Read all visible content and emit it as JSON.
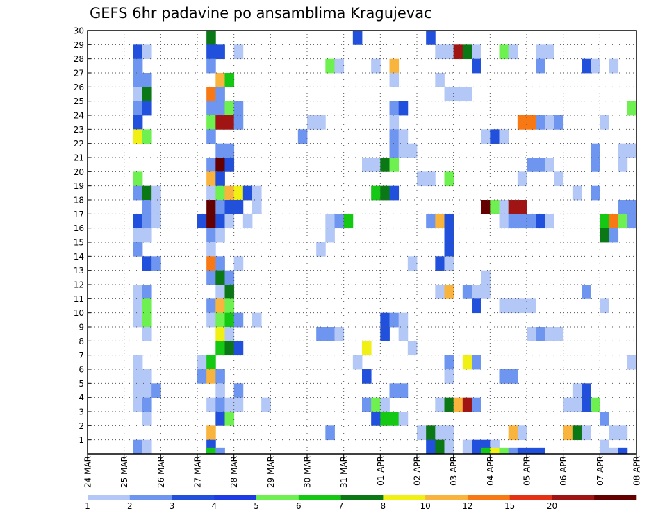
{
  "chart_data": {
    "type": "heatmap",
    "title": "GEFS 6hr padavine po ansamblima Kragujevac",
    "x_tick_labels": [
      "24 MAR",
      "25 MAR",
      "26 MAR",
      "27 MAR",
      "28 MAR",
      "29 MAR",
      "30 MAR",
      "31 MAR",
      "01 APR",
      "02 APR",
      "03 APR",
      "04 APR",
      "05 APR",
      "06 APR",
      "07 APR",
      "08 APR"
    ],
    "y_tick_labels": [
      "1",
      "2",
      "3",
      "4",
      "5",
      "6",
      "7",
      "8",
      "9",
      "10",
      "11",
      "12",
      "13",
      "14",
      "15",
      "16",
      "17",
      "18",
      "19",
      "20",
      "21",
      "22",
      "23",
      "24",
      "25",
      "26",
      "27",
      "28",
      "29",
      "30"
    ],
    "time_steps": 60,
    "members": 30,
    "grid": true,
    "colorbar": {
      "tick_labels": [
        "1",
        "2",
        "3",
        "4",
        "5",
        "6",
        "7",
        "8",
        "10",
        "12",
        "15",
        "20"
      ],
      "colors": [
        "#b4c8f8",
        "#6e96f0",
        "#2050dc",
        "#1e3ce6",
        "#6ef050",
        "#14c814",
        "#0a7814",
        "#f0f014",
        "#f8b43c",
        "#f87814",
        "#e63214",
        "#a01414",
        "#640000"
      ]
    },
    "cells": [
      [
        30,
        14,
        6
      ],
      [
        30,
        30,
        2
      ],
      [
        30,
        38,
        2
      ],
      [
        29,
        6,
        2
      ],
      [
        29,
        7,
        0
      ],
      [
        29,
        14,
        2
      ],
      [
        29,
        15,
        2
      ],
      [
        29,
        17,
        0
      ],
      [
        29,
        39,
        0
      ],
      [
        29,
        40,
        0
      ],
      [
        29,
        41,
        11
      ],
      [
        29,
        42,
        6
      ],
      [
        29,
        43,
        0
      ],
      [
        29,
        46,
        4
      ],
      [
        29,
        47,
        0
      ],
      [
        29,
        50,
        0
      ],
      [
        29,
        51,
        0
      ],
      [
        28,
        6,
        1
      ],
      [
        28,
        14,
        1
      ],
      [
        28,
        27,
        4
      ],
      [
        28,
        28,
        0
      ],
      [
        28,
        32,
        0
      ],
      [
        28,
        34,
        8
      ],
      [
        28,
        43,
        2
      ],
      [
        28,
        50,
        1
      ],
      [
        28,
        55,
        2
      ],
      [
        28,
        56,
        0
      ],
      [
        28,
        58,
        0
      ],
      [
        27,
        6,
        1
      ],
      [
        27,
        7,
        1
      ],
      [
        27,
        15,
        8
      ],
      [
        27,
        16,
        5
      ],
      [
        27,
        34,
        0
      ],
      [
        27,
        39,
        0
      ],
      [
        26,
        6,
        0
      ],
      [
        26,
        7,
        6
      ],
      [
        26,
        14,
        9
      ],
      [
        26,
        15,
        1
      ],
      [
        26,
        40,
        0
      ],
      [
        26,
        41,
        0
      ],
      [
        26,
        42,
        0
      ],
      [
        25,
        6,
        1
      ],
      [
        25,
        7,
        2
      ],
      [
        25,
        14,
        1
      ],
      [
        25,
        15,
        1
      ],
      [
        25,
        16,
        4
      ],
      [
        25,
        17,
        1
      ],
      [
        25,
        34,
        1
      ],
      [
        25,
        35,
        2
      ],
      [
        25,
        60,
        4
      ],
      [
        24,
        6,
        2
      ],
      [
        24,
        14,
        4
      ],
      [
        24,
        15,
        11
      ],
      [
        24,
        16,
        11
      ],
      [
        24,
        17,
        1
      ],
      [
        24,
        25,
        0
      ],
      [
        24,
        26,
        0
      ],
      [
        24,
        34,
        0
      ],
      [
        24,
        48,
        9
      ],
      [
        24,
        49,
        9
      ],
      [
        24,
        50,
        1
      ],
      [
        24,
        51,
        0
      ],
      [
        24,
        52,
        1
      ],
      [
        24,
        57,
        0
      ],
      [
        23,
        6,
        7
      ],
      [
        23,
        7,
        4
      ],
      [
        23,
        14,
        1
      ],
      [
        23,
        24,
        1
      ],
      [
        23,
        34,
        1
      ],
      [
        23,
        35,
        0
      ],
      [
        23,
        44,
        0
      ],
      [
        23,
        45,
        2
      ],
      [
        23,
        46,
        0
      ],
      [
        22,
        15,
        1
      ],
      [
        22,
        16,
        1
      ],
      [
        22,
        34,
        1
      ],
      [
        22,
        35,
        0
      ],
      [
        22,
        36,
        0
      ],
      [
        22,
        56,
        1
      ],
      [
        22,
        59,
        0
      ],
      [
        22,
        60,
        0
      ],
      [
        21,
        14,
        1
      ],
      [
        21,
        15,
        12
      ],
      [
        21,
        16,
        2
      ],
      [
        21,
        31,
        0
      ],
      [
        21,
        32,
        0
      ],
      [
        21,
        33,
        6
      ],
      [
        21,
        34,
        4
      ],
      [
        21,
        49,
        1
      ],
      [
        21,
        50,
        1
      ],
      [
        21,
        51,
        0
      ],
      [
        21,
        56,
        1
      ],
      [
        21,
        59,
        0
      ],
      [
        20,
        6,
        4
      ],
      [
        20,
        14,
        8
      ],
      [
        20,
        15,
        2
      ],
      [
        20,
        37,
        0
      ],
      [
        20,
        38,
        0
      ],
      [
        20,
        40,
        4
      ],
      [
        20,
        48,
        0
      ],
      [
        20,
        52,
        0
      ],
      [
        19,
        6,
        1
      ],
      [
        19,
        7,
        6
      ],
      [
        19,
        8,
        0
      ],
      [
        19,
        14,
        0
      ],
      [
        19,
        15,
        4
      ],
      [
        19,
        16,
        8
      ],
      [
        19,
        17,
        7
      ],
      [
        19,
        18,
        2
      ],
      [
        19,
        19,
        0
      ],
      [
        19,
        32,
        5
      ],
      [
        19,
        33,
        6
      ],
      [
        19,
        34,
        2
      ],
      [
        19,
        54,
        0
      ],
      [
        19,
        56,
        1
      ],
      [
        18,
        7,
        1
      ],
      [
        18,
        8,
        0
      ],
      [
        18,
        14,
        12
      ],
      [
        18,
        15,
        1
      ],
      [
        18,
        16,
        2
      ],
      [
        18,
        17,
        2
      ],
      [
        18,
        19,
        0
      ],
      [
        18,
        44,
        12
      ],
      [
        18,
        45,
        4
      ],
      [
        18,
        46,
        0
      ],
      [
        18,
        47,
        11
      ],
      [
        18,
        48,
        11
      ],
      [
        18,
        59,
        1
      ],
      [
        18,
        60,
        1
      ],
      [
        17,
        6,
        2
      ],
      [
        17,
        7,
        1
      ],
      [
        17,
        8,
        0
      ],
      [
        17,
        13,
        2
      ],
      [
        17,
        14,
        12
      ],
      [
        17,
        15,
        2
      ],
      [
        17,
        16,
        0
      ],
      [
        17,
        18,
        0
      ],
      [
        17,
        27,
        0
      ],
      [
        17,
        28,
        1
      ],
      [
        17,
        29,
        5
      ],
      [
        17,
        38,
        1
      ],
      [
        17,
        39,
        8
      ],
      [
        17,
        40,
        2
      ],
      [
        17,
        46,
        0
      ],
      [
        17,
        47,
        1
      ],
      [
        17,
        48,
        1
      ],
      [
        17,
        49,
        1
      ],
      [
        17,
        50,
        2
      ],
      [
        17,
        51,
        0
      ],
      [
        17,
        57,
        5
      ],
      [
        17,
        58,
        9
      ],
      [
        17,
        59,
        4
      ],
      [
        17,
        60,
        1
      ],
      [
        16,
        6,
        0
      ],
      [
        16,
        7,
        0
      ],
      [
        16,
        14,
        1
      ],
      [
        16,
        15,
        0
      ],
      [
        16,
        27,
        0
      ],
      [
        16,
        40,
        2
      ],
      [
        16,
        57,
        6
      ],
      [
        16,
        58,
        1
      ],
      [
        15,
        6,
        1
      ],
      [
        15,
        14,
        0
      ],
      [
        15,
        26,
        0
      ],
      [
        15,
        40,
        2
      ],
      [
        14,
        7,
        2
      ],
      [
        14,
        8,
        1
      ],
      [
        14,
        14,
        9
      ],
      [
        14,
        15,
        1
      ],
      [
        14,
        17,
        0
      ],
      [
        14,
        36,
        0
      ],
      [
        14,
        39,
        2
      ],
      [
        14,
        40,
        0
      ],
      [
        13,
        14,
        1
      ],
      [
        13,
        15,
        6
      ],
      [
        13,
        16,
        1
      ],
      [
        13,
        44,
        0
      ],
      [
        12,
        6,
        0
      ],
      [
        12,
        7,
        1
      ],
      [
        12,
        15,
        0
      ],
      [
        12,
        16,
        6
      ],
      [
        12,
        39,
        0
      ],
      [
        12,
        40,
        8
      ],
      [
        12,
        42,
        1
      ],
      [
        12,
        43,
        0
      ],
      [
        12,
        44,
        0
      ],
      [
        12,
        55,
        1
      ],
      [
        11,
        6,
        0
      ],
      [
        11,
        7,
        4
      ],
      [
        11,
        14,
        1
      ],
      [
        11,
        15,
        8
      ],
      [
        11,
        16,
        4
      ],
      [
        11,
        43,
        2
      ],
      [
        11,
        46,
        0
      ],
      [
        11,
        47,
        0
      ],
      [
        11,
        48,
        0
      ],
      [
        11,
        49,
        0
      ],
      [
        11,
        57,
        0
      ],
      [
        10,
        6,
        0
      ],
      [
        10,
        7,
        4
      ],
      [
        10,
        14,
        0
      ],
      [
        10,
        15,
        4
      ],
      [
        10,
        16,
        5
      ],
      [
        10,
        17,
        1
      ],
      [
        10,
        19,
        0
      ],
      [
        10,
        33,
        2
      ],
      [
        10,
        34,
        1
      ],
      [
        10,
        35,
        0
      ],
      [
        9,
        7,
        0
      ],
      [
        9,
        15,
        7
      ],
      [
        9,
        16,
        0
      ],
      [
        9,
        26,
        1
      ],
      [
        9,
        27,
        1
      ],
      [
        9,
        28,
        0
      ],
      [
        9,
        33,
        2
      ],
      [
        9,
        35,
        0
      ],
      [
        9,
        49,
        0
      ],
      [
        9,
        50,
        1
      ],
      [
        9,
        51,
        0
      ],
      [
        9,
        52,
        0
      ],
      [
        8,
        15,
        5
      ],
      [
        8,
        16,
        6
      ],
      [
        8,
        17,
        2
      ],
      [
        8,
        31,
        7
      ],
      [
        8,
        36,
        0
      ],
      [
        7,
        6,
        0
      ],
      [
        7,
        13,
        0
      ],
      [
        7,
        14,
        5
      ],
      [
        7,
        30,
        0
      ],
      [
        7,
        40,
        1
      ],
      [
        7,
        42,
        7
      ],
      [
        7,
        43,
        1
      ],
      [
        7,
        60,
        0
      ],
      [
        6,
        6,
        0
      ],
      [
        6,
        7,
        0
      ],
      [
        6,
        13,
        1
      ],
      [
        6,
        14,
        8
      ],
      [
        6,
        15,
        1
      ],
      [
        6,
        31,
        2
      ],
      [
        6,
        40,
        0
      ],
      [
        6,
        46,
        1
      ],
      [
        6,
        47,
        1
      ],
      [
        5,
        6,
        0
      ],
      [
        5,
        7,
        0
      ],
      [
        5,
        8,
        1
      ],
      [
        5,
        15,
        0
      ],
      [
        5,
        17,
        1
      ],
      [
        5,
        34,
        1
      ],
      [
        5,
        35,
        1
      ],
      [
        5,
        54,
        0
      ],
      [
        5,
        55,
        2
      ],
      [
        4,
        6,
        0
      ],
      [
        4,
        7,
        1
      ],
      [
        4,
        14,
        0
      ],
      [
        4,
        15,
        1
      ],
      [
        4,
        16,
        0
      ],
      [
        4,
        17,
        0
      ],
      [
        4,
        20,
        0
      ],
      [
        4,
        31,
        1
      ],
      [
        4,
        32,
        4
      ],
      [
        4,
        33,
        0
      ],
      [
        4,
        39,
        0
      ],
      [
        4,
        40,
        6
      ],
      [
        4,
        41,
        8
      ],
      [
        4,
        42,
        11
      ],
      [
        4,
        43,
        1
      ],
      [
        4,
        53,
        0
      ],
      [
        4,
        54,
        0
      ],
      [
        4,
        55,
        2
      ],
      [
        4,
        56,
        4
      ],
      [
        3,
        7,
        0
      ],
      [
        3,
        15,
        2
      ],
      [
        3,
        16,
        4
      ],
      [
        3,
        32,
        2
      ],
      [
        3,
        33,
        5
      ],
      [
        3,
        34,
        5
      ],
      [
        3,
        35,
        0
      ],
      [
        3,
        57,
        1
      ],
      [
        2,
        14,
        8
      ],
      [
        2,
        27,
        1
      ],
      [
        2,
        37,
        0
      ],
      [
        2,
        38,
        6
      ],
      [
        2,
        39,
        0
      ],
      [
        2,
        40,
        0
      ],
      [
        2,
        47,
        8
      ],
      [
        2,
        48,
        0
      ],
      [
        2,
        53,
        8
      ],
      [
        2,
        54,
        6
      ],
      [
        2,
        55,
        0
      ],
      [
        2,
        58,
        0
      ],
      [
        2,
        59,
        0
      ],
      [
        1,
        6,
        1
      ],
      [
        1,
        7,
        0
      ],
      [
        1,
        14,
        2
      ],
      [
        1,
        38,
        2
      ],
      [
        1,
        39,
        6
      ],
      [
        1,
        40,
        0
      ],
      [
        1,
        42,
        0
      ],
      [
        1,
        43,
        2
      ],
      [
        1,
        44,
        2
      ],
      [
        1,
        45,
        0
      ],
      [
        1,
        57,
        0
      ]
    ],
    "bottom_row": [
      [
        14,
        5
      ],
      [
        15,
        1
      ],
      [
        43,
        2
      ],
      [
        44,
        5
      ],
      [
        45,
        7
      ],
      [
        46,
        4
      ],
      [
        47,
        1
      ],
      [
        48,
        2
      ],
      [
        49,
        2
      ],
      [
        50,
        2
      ],
      [
        57,
        0
      ],
      [
        58,
        0
      ],
      [
        59,
        2
      ]
    ]
  }
}
